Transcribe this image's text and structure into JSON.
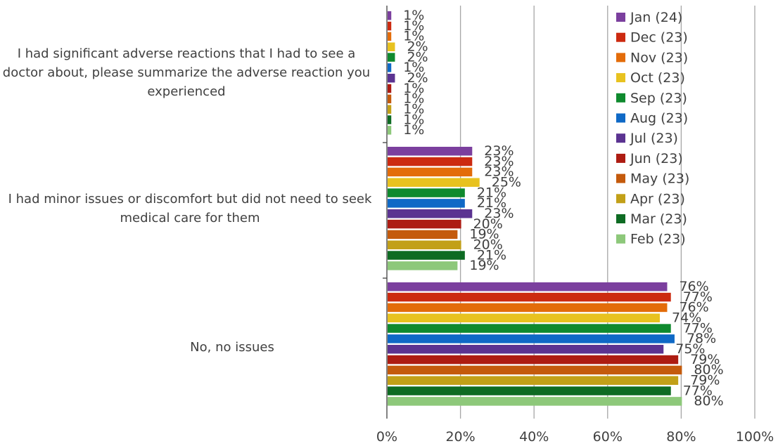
{
  "chart_data": {
    "type": "bar",
    "orientation": "horizontal",
    "categories": [
      "I had significant adverse reactions that I had to see a doctor about, please summarize the adverse reaction you experienced",
      "I had minor issues or discomfort but did not need to seek medical care for them",
      "No, no issues"
    ],
    "series": [
      {
        "name": "Jan (24)",
        "color": "#7b3f9e",
        "values": [
          1,
          23,
          76
        ],
        "labels": [
          "1%",
          "23%",
          "76%"
        ]
      },
      {
        "name": "Dec (23)",
        "color": "#cc2a10",
        "values": [
          1,
          23,
          77
        ],
        "labels": [
          "1%",
          "23%",
          "77%"
        ]
      },
      {
        "name": "Nov (23)",
        "color": "#e36c0a",
        "values": [
          1,
          23,
          76
        ],
        "labels": [
          "1%",
          "23%",
          "76%"
        ]
      },
      {
        "name": "Oct (23)",
        "color": "#e8c21f",
        "values": [
          2,
          25,
          74
        ],
        "labels": [
          "2%",
          "25%",
          "74%"
        ]
      },
      {
        "name": "Sep (23)",
        "color": "#0f8a2e",
        "values": [
          2,
          21,
          77
        ],
        "labels": [
          "2%",
          "21%",
          "77%"
        ]
      },
      {
        "name": "Aug (23)",
        "color": "#0f69c6",
        "values": [
          1,
          21,
          78
        ],
        "labels": [
          "1%",
          "21%",
          "78%"
        ]
      },
      {
        "name": "Jul (23)",
        "color": "#5b3391",
        "values": [
          2,
          23,
          75
        ],
        "labels": [
          "2%",
          "23%",
          "75%"
        ]
      },
      {
        "name": "Jun (23)",
        "color": "#ad1c12",
        "values": [
          1,
          20,
          79
        ],
        "labels": [
          "1%",
          "20%",
          "79%"
        ]
      },
      {
        "name": "May (23)",
        "color": "#c45a0c",
        "values": [
          1,
          19,
          80
        ],
        "labels": [
          "1%",
          "19%",
          "80%"
        ]
      },
      {
        "name": "Apr (23)",
        "color": "#c2a018",
        "values": [
          1,
          20,
          79
        ],
        "labels": [
          "1%",
          "20%",
          "79%"
        ]
      },
      {
        "name": "Mar (23)",
        "color": "#0e6b23",
        "values": [
          1,
          21,
          77
        ],
        "labels": [
          "1%",
          "21%",
          "77%"
        ]
      },
      {
        "name": "Feb (23)",
        "color": "#8dc87a",
        "values": [
          1,
          19,
          80
        ],
        "labels": [
          "1%",
          "19%",
          "80%"
        ]
      }
    ],
    "xlim": [
      0,
      100
    ],
    "x_ticks": [
      "0%",
      "20%",
      "40%",
      "60%",
      "80%",
      "100%"
    ],
    "grid": true,
    "legend_position": "top-right",
    "title": "",
    "xlabel": "",
    "ylabel": ""
  }
}
